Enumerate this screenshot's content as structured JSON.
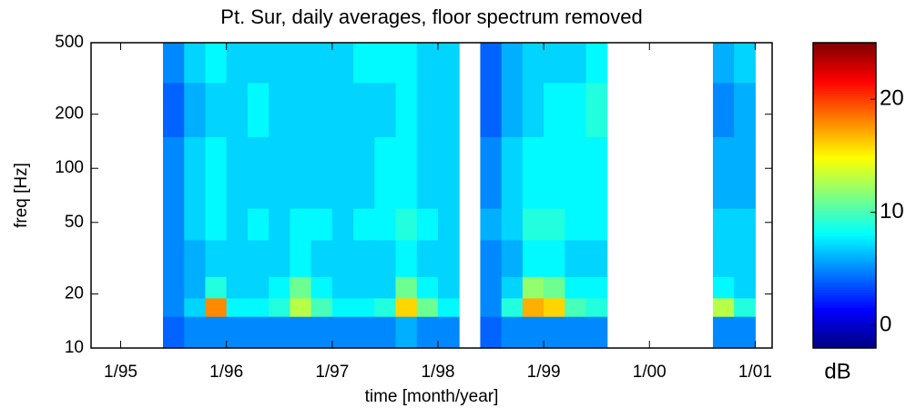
{
  "chart_data": {
    "type": "heatmap",
    "title": "Pt. Sur, daily averages, floor spectrum removed",
    "xlabel": "time [month/year]",
    "ylabel": "freq [Hz]",
    "colorbar_label": "dB",
    "xlim": [
      1994.72,
      2001.16
    ],
    "xticks": [
      {
        "value": 1995,
        "label": "1/95"
      },
      {
        "value": 1996,
        "label": "1/96"
      },
      {
        "value": 1997,
        "label": "1/97"
      },
      {
        "value": 1998,
        "label": "1/98"
      },
      {
        "value": 1999,
        "label": "1/99"
      },
      {
        "value": 2000,
        "label": "1/00"
      },
      {
        "value": 2001,
        "label": "1/01"
      }
    ],
    "ylim": [
      10,
      500
    ],
    "yticks": [
      10,
      20,
      50,
      100,
      200,
      500
    ],
    "log_y": true,
    "clim": [
      -2,
      25
    ],
    "cticks": [
      0,
      10,
      20
    ],
    "colormap": "jet",
    "x_edges": [
      1994.8,
      1995,
      1995.2,
      1995.4,
      1995.6,
      1995.8,
      1996,
      1996.2,
      1996.4,
      1996.6,
      1996.8,
      1997,
      1997.2,
      1997.4,
      1997.6,
      1997.8,
      1998,
      1998.2,
      1998.4,
      1998.6,
      1998.8,
      1999,
      1999.2,
      1999.4,
      1999.6,
      1999.8,
      2000,
      2000.2,
      2000.4,
      2000.6,
      2000.8,
      2001
    ],
    "y_edges": [
      10,
      15,
      19,
      25,
      40,
      60,
      150,
      300,
      500
    ],
    "z": [
      null,
      null,
      null,
      [
        4,
        5,
        5,
        5,
        5,
        5,
        4,
        5
      ],
      [
        5,
        7,
        6,
        6,
        7,
        7,
        6,
        7
      ],
      [
        5,
        18,
        9,
        7,
        8,
        8,
        7,
        8
      ],
      [
        5,
        8,
        7,
        7,
        7,
        7,
        7,
        7
      ],
      [
        5,
        8,
        7,
        7,
        8,
        7,
        8,
        7
      ],
      [
        5,
        9,
        8,
        7,
        7,
        7,
        7,
        7
      ],
      [
        5,
        13,
        11,
        8,
        8,
        7,
        7,
        7
      ],
      [
        5,
        10,
        8,
        7,
        8,
        7,
        7,
        7
      ],
      [
        5,
        8,
        7,
        7,
        7,
        7,
        7,
        7
      ],
      [
        5,
        8,
        7,
        7,
        8,
        7,
        7,
        8
      ],
      [
        5,
        9,
        7,
        7,
        8,
        8,
        7,
        8
      ],
      [
        6,
        16,
        11,
        8,
        9,
        8,
        8,
        8
      ],
      [
        5,
        11,
        8,
        7,
        8,
        7,
        7,
        7
      ],
      [
        5,
        8,
        7,
        7,
        7,
        7,
        7,
        7
      ],
      null,
      [
        4,
        5,
        5,
        5,
        6,
        5,
        4,
        4
      ],
      [
        5,
        9,
        7,
        6,
        7,
        7,
        6,
        6
      ],
      [
        5,
        17,
        12,
        8,
        9,
        8,
        7,
        7
      ],
      [
        5,
        16,
        11,
        8,
        9,
        8,
        8,
        7
      ],
      [
        5,
        10,
        8,
        7,
        8,
        8,
        8,
        7
      ],
      [
        5,
        9,
        8,
        7,
        8,
        8,
        9,
        8
      ],
      null,
      null,
      null,
      null,
      null,
      [
        5,
        13,
        8,
        7,
        7,
        6,
        5,
        6
      ],
      [
        5,
        9,
        7,
        7,
        7,
        6,
        6,
        7
      ]
    ]
  }
}
